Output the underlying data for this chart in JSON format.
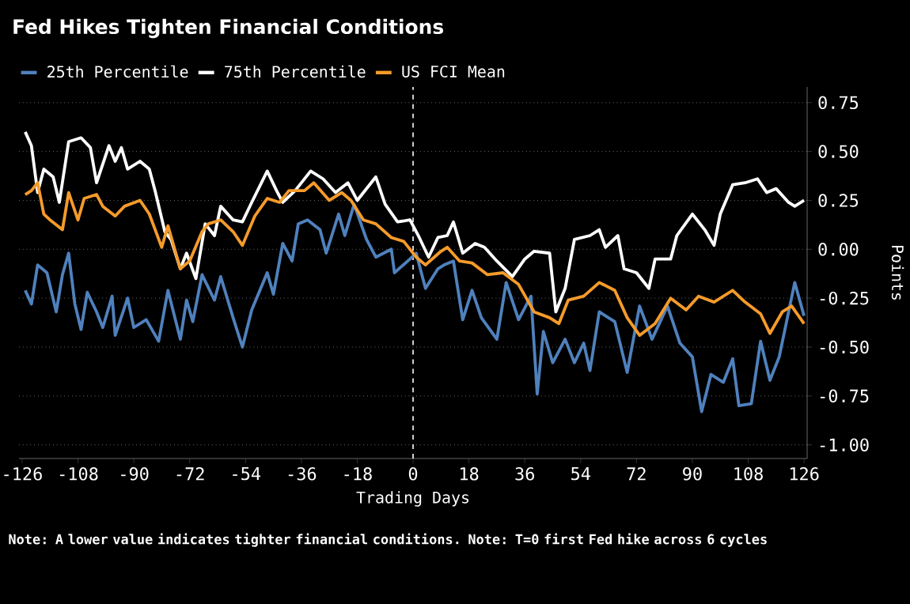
{
  "chart_data": {
    "type": "line",
    "title": "Fed Hikes Tighten Financial Conditions",
    "xlabel": "Trading Days",
    "ylabel": "Points",
    "annotations": [
      "Note: A lower value indicates tighter financial conditions. Note: T=0 first Fed hike across 6 cycles"
    ],
    "xlim": [
      -127,
      127
    ],
    "xticks": [
      -126,
      -108,
      -90,
      -72,
      -54,
      -36,
      -18,
      0,
      18,
      36,
      54,
      72,
      90,
      108,
      126
    ],
    "ylim": [
      -1.07,
      0.83
    ],
    "yticks": [
      {
        "value": 0.75,
        "label": "0.75"
      },
      {
        "value": 0.5,
        "label": "0.50"
      },
      {
        "value": 0.25,
        "label": "0.25"
      },
      {
        "value": 0,
        "label": "0.00"
      },
      {
        "value": -0.25,
        "label": "-0.25"
      },
      {
        "value": -0.5,
        "label": "-0.50"
      },
      {
        "value": -0.75,
        "label": "-0.75"
      },
      {
        "value": -1,
        "label": "-1.00"
      }
    ],
    "grid": "y",
    "legend": "top left",
    "marker": "none",
    "ref_lines": [
      {
        "axis": "x",
        "value": 0,
        "color": "#ffffff",
        "line_style": "dashed"
      }
    ],
    "series": [
      {
        "name": "25th Percentile",
        "color": "#4f81bd",
        "x": [
          -125,
          -123,
          -121,
          -118,
          -115,
          -113,
          -111,
          -109,
          -107,
          -105,
          -102,
          -100,
          -97,
          -96,
          -92,
          -90,
          -86,
          -82,
          -79,
          -75,
          -73,
          -71,
          -68,
          -64,
          -62,
          -58,
          -55,
          -52,
          -47,
          -45,
          -42,
          -39,
          -37,
          -34,
          -30,
          -28,
          -24,
          -22,
          -19,
          -15,
          -12,
          -7,
          -6,
          -1,
          1,
          4,
          8,
          10,
          13,
          16,
          19,
          22,
          27,
          30,
          34,
          38,
          40,
          42,
          45,
          49,
          52,
          55,
          57,
          60,
          65,
          69,
          73,
          77,
          82,
          86,
          90,
          93,
          96,
          100,
          103,
          105,
          109,
          112,
          115,
          118,
          123,
          126
        ],
        "values": [
          -0.21,
          -0.28,
          -0.08,
          -0.12,
          -0.32,
          -0.13,
          -0.02,
          -0.28,
          -0.41,
          -0.22,
          -0.32,
          -0.4,
          -0.24,
          -0.44,
          -0.25,
          -0.4,
          -0.36,
          -0.47,
          -0.21,
          -0.46,
          -0.26,
          -0.37,
          -0.13,
          -0.26,
          -0.14,
          -0.35,
          -0.5,
          -0.31,
          -0.12,
          -0.23,
          0.03,
          -0.06,
          0.13,
          0.15,
          0.1,
          -0.02,
          0.18,
          0.07,
          0.23,
          0.05,
          -0.04,
          0.0,
          -0.12,
          -0.05,
          -0.02,
          -0.2,
          -0.1,
          -0.08,
          -0.06,
          -0.36,
          -0.21,
          -0.35,
          -0.46,
          -0.17,
          -0.36,
          -0.24,
          -0.74,
          -0.42,
          -0.58,
          -0.46,
          -0.58,
          -0.48,
          -0.62,
          -0.32,
          -0.37,
          -0.63,
          -0.29,
          -0.46,
          -0.29,
          -0.48,
          -0.55,
          -0.83,
          -0.64,
          -0.68,
          -0.56,
          -0.8,
          -0.79,
          -0.47,
          -0.67,
          -0.55,
          -0.17,
          -0.34
        ]
      },
      {
        "name": "75th Percentile",
        "color": "#ffffff",
        "x": [
          -125,
          -123,
          -121,
          -119,
          -116,
          -114,
          -111,
          -107,
          -104,
          -102,
          -98,
          -96,
          -94,
          -92,
          -88,
          -85,
          -83,
          -80,
          -78,
          -75,
          -73,
          -70,
          -67,
          -64,
          -62,
          -58,
          -55,
          -52,
          -47,
          -44,
          -42,
          -38,
          -33,
          -29,
          -25,
          -21,
          -18,
          -12,
          -9,
          -5,
          -1,
          2,
          5,
          8,
          11,
          13,
          16,
          20,
          23,
          27,
          32,
          36,
          39,
          44,
          46,
          49,
          52,
          57,
          60,
          62,
          66,
          68,
          72,
          76,
          78,
          83,
          85,
          90,
          94,
          97,
          99,
          103,
          107,
          111,
          114,
          117,
          121,
          123,
          126
        ],
        "values": [
          0.6,
          0.53,
          0.29,
          0.41,
          0.37,
          0.24,
          0.55,
          0.57,
          0.52,
          0.34,
          0.53,
          0.45,
          0.52,
          0.41,
          0.45,
          0.41,
          0.29,
          0.09,
          0.05,
          -0.1,
          -0.02,
          -0.15,
          0.13,
          0.07,
          0.22,
          0.15,
          0.14,
          0.24,
          0.4,
          0.3,
          0.24,
          0.3,
          0.4,
          0.36,
          0.29,
          0.34,
          0.25,
          0.37,
          0.23,
          0.14,
          0.15,
          0.06,
          -0.04,
          0.06,
          0.07,
          0.14,
          -0.02,
          0.03,
          0.01,
          -0.06,
          -0.14,
          -0.05,
          -0.01,
          -0.02,
          -0.32,
          -0.2,
          0.05,
          0.07,
          0.1,
          0.01,
          0.07,
          -0.1,
          -0.12,
          -0.2,
          -0.05,
          -0.05,
          0.07,
          0.18,
          0.1,
          0.02,
          0.18,
          0.33,
          0.34,
          0.36,
          0.29,
          0.31,
          0.24,
          0.22,
          0.25
        ]
      },
      {
        "name": "US FCI Mean",
        "color": "#f59b2a",
        "x": [
          -125,
          -123,
          -121,
          -119,
          -117,
          -113,
          -111,
          -108,
          -106,
          -102,
          -100,
          -96,
          -93,
          -88,
          -85,
          -81,
          -79,
          -75,
          -72,
          -68,
          -66,
          -62,
          -58,
          -55,
          -51,
          -47,
          -43,
          -40,
          -35,
          -32,
          -27,
          -23,
          -20,
          -16,
          -12,
          -7,
          -3,
          1,
          4,
          9,
          11,
          15,
          19,
          24,
          29,
          34,
          39,
          44,
          47,
          50,
          55,
          60,
          65,
          69,
          73,
          78,
          83,
          88,
          92,
          97,
          103,
          107,
          112,
          115,
          119,
          122,
          126
        ],
        "values": [
          0.28,
          0.3,
          0.34,
          0.18,
          0.15,
          0.1,
          0.29,
          0.15,
          0.26,
          0.28,
          0.22,
          0.17,
          0.22,
          0.25,
          0.18,
          0.01,
          0.12,
          -0.1,
          -0.06,
          0.09,
          0.13,
          0.15,
          0.09,
          0.02,
          0.17,
          0.26,
          0.24,
          0.3,
          0.3,
          0.34,
          0.25,
          0.29,
          0.25,
          0.15,
          0.13,
          0.06,
          0.04,
          -0.04,
          -0.08,
          -0.01,
          0.01,
          -0.06,
          -0.07,
          -0.13,
          -0.12,
          -0.18,
          -0.32,
          -0.35,
          -0.38,
          -0.26,
          -0.24,
          -0.17,
          -0.21,
          -0.35,
          -0.44,
          -0.38,
          -0.25,
          -0.31,
          -0.24,
          -0.27,
          -0.21,
          -0.27,
          -0.33,
          -0.43,
          -0.32,
          -0.29,
          -0.38
        ]
      }
    ]
  }
}
